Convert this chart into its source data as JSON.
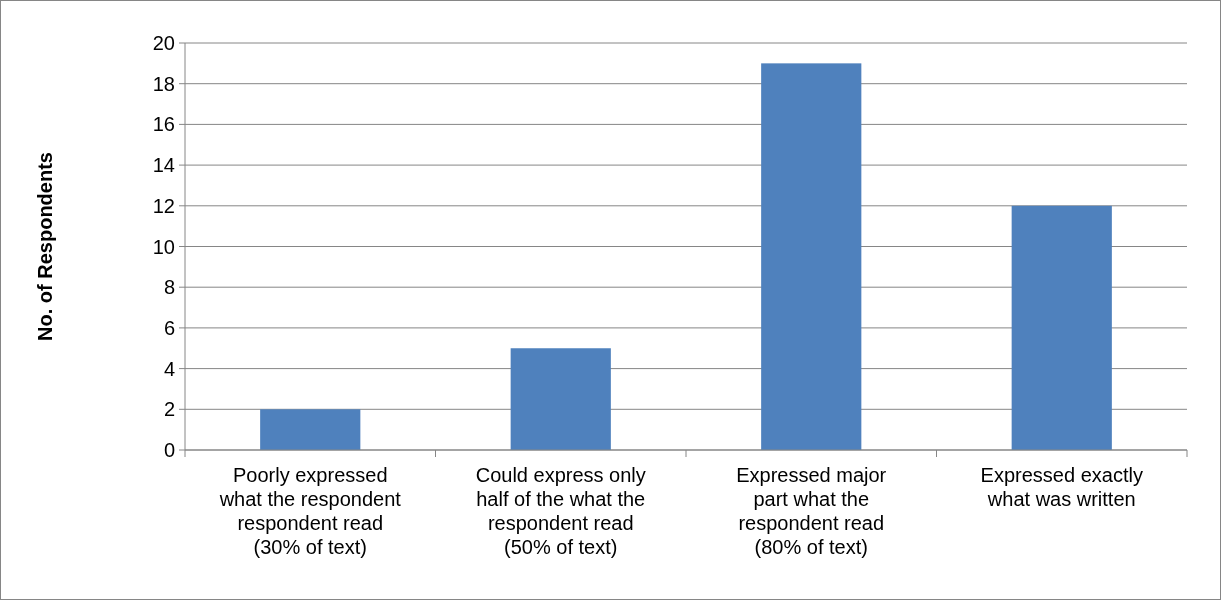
{
  "chart_data": {
    "type": "bar",
    "ylabel": "No. of Respondents",
    "categories": [
      "Poorly expressed what the respondent respondent read (30% of text)",
      "Could express only half of the what the respondent read (50% of text)",
      "Expressed major part what the respondent read (80% of text)",
      "Expressed exactly what was written"
    ],
    "values": [
      2,
      5,
      19,
      12
    ],
    "color": "#4f81bd",
    "ylim": [
      0,
      20
    ],
    "yticks": [
      0,
      2,
      4,
      6,
      8,
      10,
      12,
      14,
      16,
      18,
      20
    ],
    "grid": "y"
  }
}
